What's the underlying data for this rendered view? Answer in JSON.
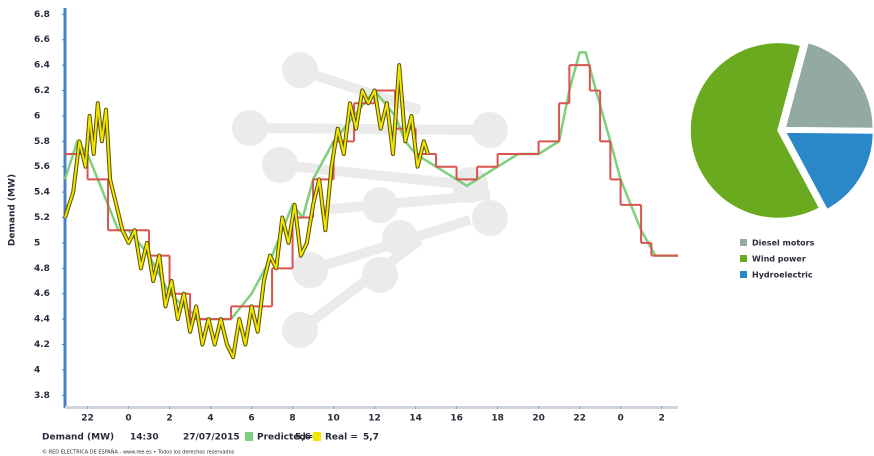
{
  "chart_data": [
    {
      "type": "line",
      "ylabel": "Demand (MW)",
      "xlim": [
        20.9,
        50.8
      ],
      "xticks": [
        22,
        {
          "value": 24,
          "label": "0"
        },
        {
          "value": 26,
          "label": "2"
        },
        {
          "value": 28,
          "label": "4"
        },
        {
          "value": 30,
          "label": "6"
        },
        {
          "value": 32,
          "label": "8"
        },
        {
          "value": 34,
          "label": "10"
        },
        {
          "value": 36,
          "label": "12"
        },
        {
          "value": 38,
          "label": "14"
        },
        {
          "value": 40,
          "label": "16"
        },
        {
          "value": 42,
          "label": "18"
        },
        {
          "value": 44,
          "label": "20"
        },
        {
          "value": 46,
          "label": "22"
        },
        {
          "value": 48,
          "label": "0"
        },
        {
          "value": 50,
          "label": "2"
        }
      ],
      "ylim": [
        3.7,
        6.85
      ],
      "yticks": [
        3.8,
        4,
        4.2,
        4.4,
        4.6,
        4.8,
        5,
        5.2,
        5.4,
        5.6,
        5.8,
        6,
        6.2,
        6.4,
        6.6,
        6.8
      ],
      "series": [
        {
          "name": "Predicted=",
          "color": "#7fcf7f",
          "current": {
            "value": 5.6,
            "label": "5,6"
          },
          "x": [
            20.9,
            21.5,
            22,
            22.5,
            23.5,
            24,
            25,
            26,
            26.7,
            27.5,
            28,
            29,
            29.5,
            30,
            31,
            32,
            32.5,
            33,
            34,
            35,
            35.5,
            36,
            36.5,
            37,
            37.5,
            38,
            39,
            40,
            40.5,
            41,
            42,
            43,
            44,
            45,
            45.5,
            46,
            46.3,
            46.8,
            47.5,
            48,
            48.5,
            49,
            49.7,
            50.8
          ],
          "values": [
            5.5,
            5.8,
            5.7,
            5.5,
            5.1,
            5.1,
            4.9,
            4.6,
            4.5,
            4.4,
            4.4,
            4.4,
            4.5,
            4.6,
            4.9,
            5.3,
            5.2,
            5.5,
            5.8,
            6.0,
            6.1,
            6.2,
            6.1,
            6.0,
            5.8,
            5.7,
            5.6,
            5.5,
            5.45,
            5.5,
            5.6,
            5.7,
            5.7,
            5.8,
            6.2,
            6.5,
            6.5,
            6.2,
            5.8,
            5.5,
            5.3,
            5.1,
            4.9,
            4.9
          ]
        },
        {
          "color": "#d9534f",
          "step": true,
          "x": [
            20.9,
            22,
            23,
            24,
            25,
            26,
            27,
            28,
            29,
            30,
            31,
            32,
            33,
            34,
            35,
            36,
            37,
            38,
            39,
            40,
            41,
            42,
            43,
            44,
            45,
            45.5,
            46.5,
            47,
            47.5,
            48,
            49,
            49.5,
            50.8
          ],
          "values": [
            5.7,
            5.5,
            5.1,
            5.1,
            4.9,
            4.6,
            4.4,
            4.4,
            4.5,
            4.5,
            4.8,
            5.2,
            5.5,
            5.8,
            6.1,
            6.2,
            5.9,
            5.7,
            5.6,
            5.5,
            5.6,
            5.7,
            5.7,
            5.8,
            6.1,
            6.4,
            6.2,
            5.8,
            5.5,
            5.3,
            5.0,
            4.9,
            4.9
          ]
        },
        {
          "name": "Real =",
          "color": "#f2e600",
          "outline": "#5a5200",
          "current": {
            "value": 5.7,
            "label": "5,7"
          },
          "x": [
            20.9,
            21.3,
            21.6,
            21.9,
            22.1,
            22.3,
            22.5,
            22.7,
            22.9,
            23.1,
            23.4,
            23.7,
            24.0,
            24.3,
            24.6,
            24.9,
            25.2,
            25.5,
            25.8,
            26.1,
            26.4,
            26.7,
            27.0,
            27.3,
            27.6,
            27.9,
            28.2,
            28.5,
            28.8,
            29.1,
            29.4,
            29.7,
            30.0,
            30.3,
            30.6,
            30.9,
            31.2,
            31.5,
            31.8,
            32.1,
            32.4,
            32.7,
            33.0,
            33.3,
            33.6,
            33.9,
            34.2,
            34.5,
            34.8,
            35.1,
            35.4,
            35.7,
            36.0,
            36.3,
            36.6,
            36.9,
            37.2,
            37.5,
            37.8,
            38.1,
            38.4,
            38.6
          ],
          "values": [
            5.2,
            5.4,
            5.8,
            5.6,
            6.0,
            5.7,
            6.1,
            5.8,
            6.05,
            5.5,
            5.3,
            5.1,
            5.0,
            5.1,
            4.8,
            5.0,
            4.7,
            4.9,
            4.5,
            4.7,
            4.4,
            4.6,
            4.3,
            4.5,
            4.2,
            4.4,
            4.2,
            4.4,
            4.2,
            4.1,
            4.4,
            4.2,
            4.5,
            4.3,
            4.7,
            4.9,
            4.8,
            5.2,
            5.0,
            5.3,
            4.9,
            5.0,
            5.3,
            5.5,
            5.1,
            5.6,
            5.9,
            5.7,
            6.1,
            5.9,
            6.2,
            6.1,
            6.2,
            5.9,
            6.1,
            5.7,
            6.4,
            5.8,
            6.0,
            5.6,
            5.8,
            5.7
          ]
        }
      ],
      "readout": {
        "label": "Demand (MW)",
        "time": "14:30",
        "date": "27/07/2015"
      },
      "credit": "© RED ELECTRICA DE ESPAÑA - www.ree.es • Todos los derechos reservados"
    },
    {
      "type": "pie",
      "categories": [
        "Diesel motors",
        "Wind power",
        "Hydroelectric"
      ],
      "values": [
        21,
        62,
        17
      ],
      "colors": [
        "#93aaa0",
        "#6aaa1f",
        "#2b88c8"
      ]
    }
  ]
}
